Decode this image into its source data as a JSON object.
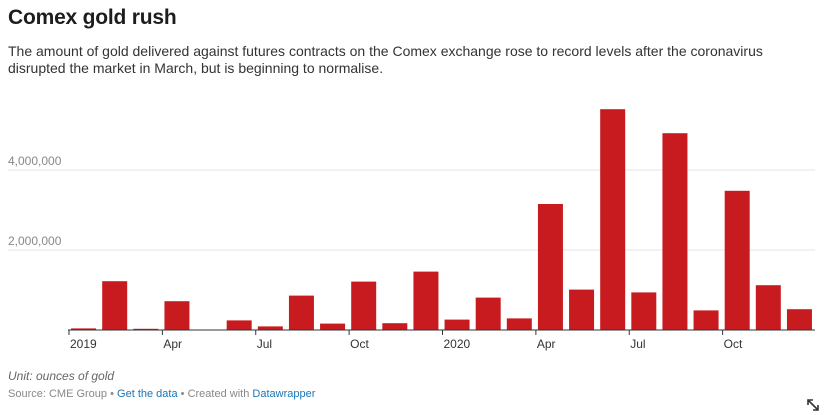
{
  "title": "Comex gold rush",
  "subtitle": "The amount of gold delivered against futures contracts on the Comex exchange rose to record levels after the coronavirus disrupted the market in March, but is beginning to normalise.",
  "notes": "Unit: ounces of gold",
  "footer": {
    "source": "Source: CME Group",
    "separator": "•",
    "get_data": "Get the data",
    "created_with": "Created with",
    "tool": "Datawrapper"
  },
  "icons": {
    "resize": "expand-arrows-icon"
  },
  "colors": {
    "bar": "#c81b1f",
    "grid": "#e6e6e6",
    "axis_text": "#333333",
    "ytick_text": "#888888"
  },
  "chart_data": {
    "type": "bar",
    "title": "Comex gold rush",
    "xlabel": "",
    "ylabel": "",
    "unit": "ounces of gold",
    "categories": [
      "Jan 2019",
      "Feb 2019",
      "Mar 2019",
      "Apr 2019",
      "May 2019",
      "Jun 2019",
      "Jul 2019",
      "Aug 2019",
      "Sep 2019",
      "Oct 2019",
      "Nov 2019",
      "Dec 2019",
      "Jan 2020",
      "Feb 2020",
      "Mar 2020",
      "Apr 2020",
      "May 2020",
      "Jun 2020",
      "Jul 2020",
      "Aug 2020",
      "Sep 2020",
      "Oct 2020",
      "Nov 2020",
      "Dec 2020"
    ],
    "values": [
      40000,
      1220000,
      30000,
      720000,
      0,
      240000,
      90000,
      860000,
      160000,
      1210000,
      170000,
      1460000,
      260000,
      810000,
      290000,
      3150000,
      1010000,
      5520000,
      940000,
      4920000,
      490000,
      3480000,
      1120000,
      520000
    ],
    "ylim": [
      0,
      6000000
    ],
    "yticks": [
      2000000,
      4000000
    ],
    "ytick_labels": [
      "2,000,000",
      "4,000,000"
    ],
    "xtick_labels": [
      {
        "index": 0,
        "label": "2019"
      },
      {
        "index": 3,
        "label": "Apr"
      },
      {
        "index": 6,
        "label": "Jul"
      },
      {
        "index": 9,
        "label": "Oct"
      },
      {
        "index": 12,
        "label": "2020"
      },
      {
        "index": 15,
        "label": "Apr"
      },
      {
        "index": 18,
        "label": "Jul"
      },
      {
        "index": 21,
        "label": "Oct"
      }
    ],
    "grid": true,
    "legend": "none"
  }
}
